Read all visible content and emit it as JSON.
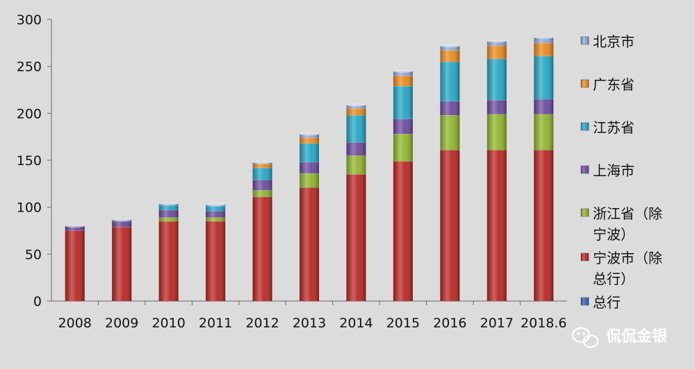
{
  "chart_data": {
    "type": "bar",
    "stacked": true,
    "categories": [
      "2008",
      "2009",
      "2010",
      "2011",
      "2012",
      "2013",
      "2014",
      "2015",
      "2016",
      "2017",
      "2018.6"
    ],
    "series": [
      {
        "name": "总行",
        "color": "#2e62b8",
        "values": [
          0,
          0,
          0,
          0,
          0,
          0,
          0,
          0,
          0,
          0,
          0
        ]
      },
      {
        "name": "宁波市（除总行）",
        "color": "#b82623",
        "values": [
          75,
          79,
          85,
          85,
          111,
          121,
          135,
          149,
          161,
          161,
          161
        ]
      },
      {
        "name": "浙江省（除宁波）",
        "color": "#8fb42a",
        "values": [
          0,
          0,
          4,
          4,
          7,
          15,
          20,
          29,
          37,
          38,
          38
        ]
      },
      {
        "name": "上海市",
        "color": "#6a4a9c",
        "values": [
          5,
          6,
          8,
          7,
          11,
          12,
          14,
          16,
          15,
          15,
          16
        ]
      },
      {
        "name": "江苏省",
        "color": "#23a6c2",
        "values": [
          0,
          0,
          5,
          5,
          13,
          20,
          29,
          35,
          42,
          44,
          46
        ]
      },
      {
        "name": "广东省",
        "color": "#e88a1c",
        "values": [
          0,
          0,
          0,
          0,
          4,
          6,
          7,
          11,
          12,
          14,
          14
        ]
      },
      {
        "name": "北京市",
        "color": "#8ea6d6",
        "values": [
          0,
          2,
          2,
          2,
          2,
          4,
          4,
          5,
          5,
          5,
          6
        ]
      }
    ],
    "legend_entries": [
      {
        "lines": [
          "北京市"
        ],
        "color": "#8ea6d6"
      },
      {
        "lines": [
          "广东省"
        ],
        "color": "#e88a1c"
      },
      {
        "lines": [
          "江苏省"
        ],
        "color": "#23a6c2"
      },
      {
        "lines": [
          "上海市"
        ],
        "color": "#6a4a9c"
      },
      {
        "lines": [
          "浙江省（除",
          "宁波）"
        ],
        "color": "#8fb42a"
      },
      {
        "lines": [
          "宁波市（除",
          "总行）"
        ],
        "color": "#b82623"
      },
      {
        "lines": [
          "总行"
        ],
        "color": "#2e62b8"
      }
    ],
    "ylim": [
      0,
      300
    ],
    "yticks": [
      0,
      50,
      100,
      150,
      200,
      250,
      300
    ],
    "grid": false,
    "legend_position": "right",
    "title": "",
    "xlabel": "",
    "ylabel": ""
  },
  "watermark": {
    "text": "侃侃金银",
    "icon": "wechat-icon"
  }
}
